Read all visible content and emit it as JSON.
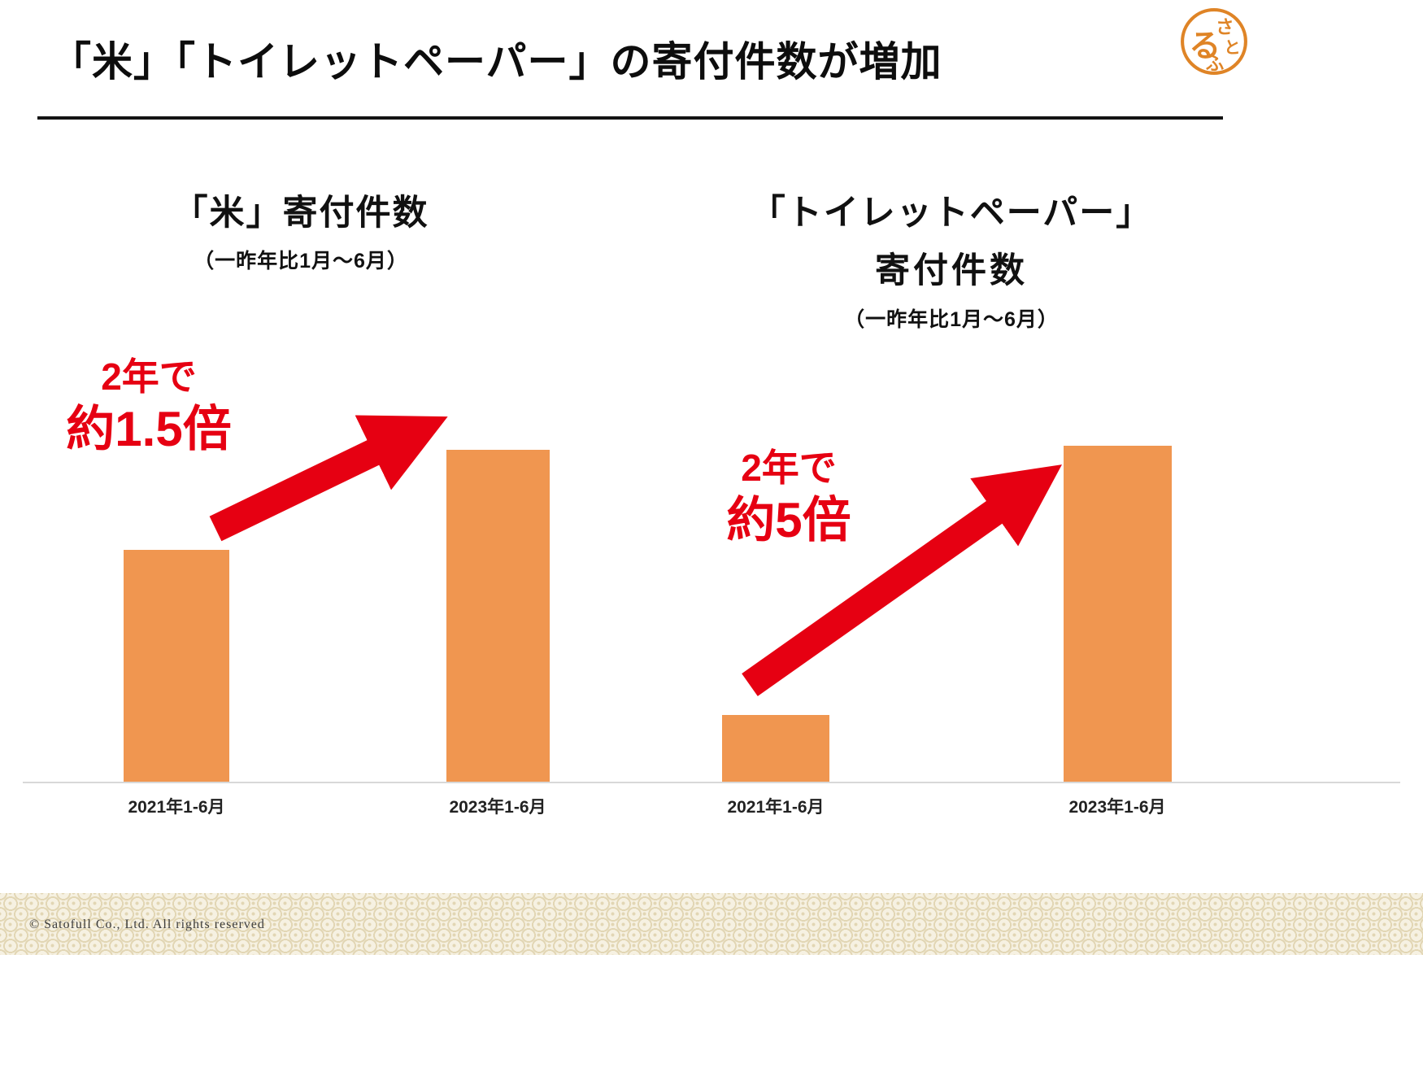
{
  "slide": {
    "title": "「米」「トイレットペーパー」の寄付件数が増加",
    "copyright": "© Satofull Co., Ltd. All rights reserved",
    "logo": {
      "chars": [
        "さ",
        "と",
        "る",
        "ふ"
      ]
    }
  },
  "colors": {
    "bar_orange": "#F09650",
    "accent_red": "#E60012",
    "logo_orange": "#DF8426",
    "baseline_gray": "#D8D8D8"
  },
  "chart_data": [
    {
      "type": "bar",
      "title": "「米」寄付件数",
      "subtitle": "（一昨年比1月～6月）",
      "categories": [
        "2021年1-6月",
        "2023年1-6月"
      ],
      "values": [
        1,
        1.43
      ],
      "values_unit": "relative (2021 = 1)",
      "annotation": {
        "line1": "2年で",
        "line2": "約1.5倍"
      },
      "ylim": [
        0,
        1.5
      ],
      "grid": false,
      "legend": "none"
    },
    {
      "type": "bar",
      "title": "「トイレットペーパー」",
      "title_line2": "寄付件数",
      "subtitle": "（一昨年比1月～6月）",
      "categories": [
        "2021年1-6月",
        "2023年1-6月"
      ],
      "values": [
        1,
        5
      ],
      "values_unit": "relative (2021 = 1)",
      "annotation": {
        "line1": "2年で",
        "line2": "約5倍"
      },
      "ylim": [
        0,
        5.2
      ],
      "grid": false,
      "legend": "none"
    }
  ]
}
